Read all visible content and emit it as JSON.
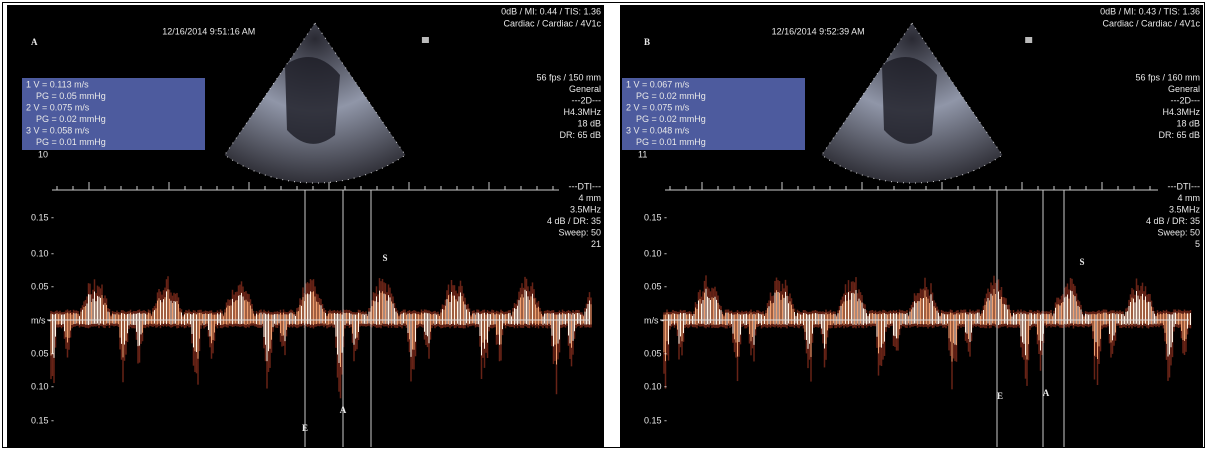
{
  "panels": [
    {
      "label": "A",
      "timestamp": "12/16/2014 9:51:16 AM",
      "system": [
        "0dB / MI: 0.44 / TIS: 1.36",
        "Cardiac / Cardiac / 4V1c"
      ],
      "measurements": [
        "1  V = 0.113 m/s",
        "PG = 0.05 mmHg",
        "2  V = 0.075 m/s",
        "PG = 0.02 mmHg",
        "3  V = 0.058 m/s",
        "PG = 0.01 mmHg"
      ],
      "measurement_footer": "10",
      "settings_2d": [
        "56 fps / 150 mm",
        "General",
        "---2D---",
        "H4.3MHz",
        "18 dB",
        "DR: 65 dB"
      ],
      "settings_dti": [
        "---DTI---",
        "4 mm",
        "3.5MHz",
        "4 dB / DR: 35",
        "Sweep: 50",
        "21"
      ],
      "axis_labels": [
        "0.15 -",
        "0.10 -",
        "0.05 -",
        "m/s -",
        "0.05 -",
        "0.10 -",
        "0.15 -"
      ],
      "markers": [
        "E",
        "A",
        "S"
      ]
    },
    {
      "label": "B",
      "timestamp": "12/16/2014 9:52:39 AM",
      "system": [
        "0dB / MI: 0.43 / TIS: 1.36",
        "Cardiac / Cardiac / 4V1c"
      ],
      "measurements": [
        "1  V = 0.067 m/s",
        "PG = 0.02 mmHg",
        "2  V = 0.075 m/s",
        "PG = 0.02 mmHg",
        "3  V = 0.048 m/s",
        "PG = 0.01 mmHg"
      ],
      "measurement_footer": "11",
      "settings_2d": [
        "56 fps / 160 mm",
        "General",
        "---2D---",
        "H4.3MHz",
        "18 dB",
        "DR: 65 dB"
      ],
      "settings_dti": [
        "---DTI---",
        "4 mm",
        "3.5MHz",
        "4 dB / DR: 35",
        "Sweep: 50",
        "5"
      ],
      "axis_labels": [
        "0.15 -",
        "0.10 -",
        "0.05 -",
        "m/s -",
        "0.05 -",
        "0.10 -",
        "0.15 -"
      ],
      "markers": [
        "E",
        "A",
        "S"
      ]
    }
  ]
}
